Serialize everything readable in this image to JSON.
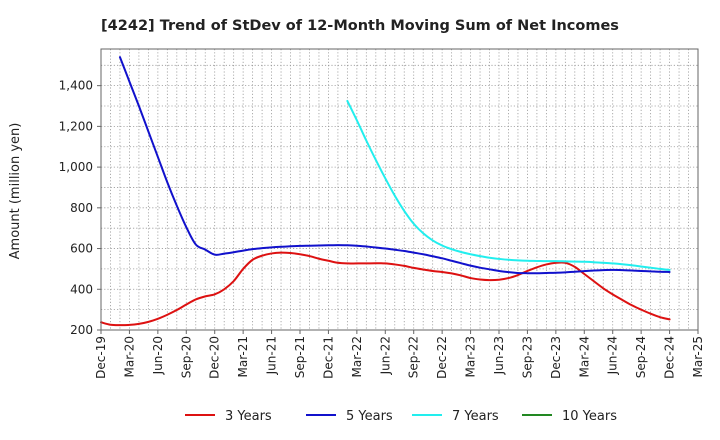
{
  "chart_data": {
    "type": "line",
    "title": "[4242]  Trend of StDev of 12-Month Moving Sum of Net Incomes",
    "xlabel": "",
    "ylabel": "Amount (million yen)",
    "ylim": [
      200,
      1580
    ],
    "yticks": [
      200,
      400,
      600,
      800,
      1000,
      1200,
      1400
    ],
    "ytick_labels": [
      "200",
      "400",
      "600",
      "800",
      "1,000",
      "1,200",
      "1,400"
    ],
    "x_range": [
      "2019-12",
      "2025-03"
    ],
    "xticks": [
      "2019-12",
      "2020-03",
      "2020-06",
      "2020-09",
      "2020-12",
      "2021-03",
      "2021-06",
      "2021-09",
      "2021-12",
      "2022-03",
      "2022-06",
      "2022-09",
      "2022-12",
      "2023-03",
      "2023-06",
      "2023-09",
      "2023-12",
      "2024-03",
      "2024-06",
      "2024-09",
      "2024-12",
      "2025-03"
    ],
    "xtick_labels": [
      "Dec-19",
      "Mar-20",
      "Jun-20",
      "Sep-20",
      "Dec-20",
      "Mar-21",
      "Jun-21",
      "Sep-21",
      "Dec-21",
      "Mar-22",
      "Jun-22",
      "Sep-22",
      "Dec-22",
      "Mar-23",
      "Jun-23",
      "Sep-23",
      "Dec-23",
      "Mar-24",
      "Jun-24",
      "Sep-24",
      "Dec-24",
      "Mar-25"
    ],
    "grid": true,
    "legend_position": "bottom",
    "series": [
      {
        "name": "3 Years",
        "color": "#dd1111",
        "points": [
          [
            "2019-12",
            238
          ],
          [
            "2020-01",
            226
          ],
          [
            "2020-02",
            224
          ],
          [
            "2020-03",
            225
          ],
          [
            "2020-04",
            230
          ],
          [
            "2020-05",
            240
          ],
          [
            "2020-06",
            255
          ],
          [
            "2020-07",
            275
          ],
          [
            "2020-08",
            298
          ],
          [
            "2020-09",
            325
          ],
          [
            "2020-10",
            350
          ],
          [
            "2020-11",
            365
          ],
          [
            "2020-12",
            375
          ],
          [
            "2021-01",
            400
          ],
          [
            "2021-02",
            440
          ],
          [
            "2021-03",
            500
          ],
          [
            "2021-04",
            545
          ],
          [
            "2021-05",
            565
          ],
          [
            "2021-06",
            576
          ],
          [
            "2021-07",
            580
          ],
          [
            "2021-08",
            578
          ],
          [
            "2021-09",
            572
          ],
          [
            "2021-10",
            563
          ],
          [
            "2021-11",
            550
          ],
          [
            "2021-12",
            540
          ],
          [
            "2022-01",
            530
          ],
          [
            "2022-02",
            527
          ],
          [
            "2022-03",
            527
          ],
          [
            "2022-04",
            527
          ],
          [
            "2022-05",
            528
          ],
          [
            "2022-06",
            527
          ],
          [
            "2022-07",
            522
          ],
          [
            "2022-08",
            515
          ],
          [
            "2022-09",
            505
          ],
          [
            "2022-10",
            497
          ],
          [
            "2022-11",
            490
          ],
          [
            "2022-12",
            485
          ],
          [
            "2023-01",
            478
          ],
          [
            "2023-02",
            468
          ],
          [
            "2023-03",
            455
          ],
          [
            "2023-04",
            448
          ],
          [
            "2023-05",
            445
          ],
          [
            "2023-06",
            447
          ],
          [
            "2023-07",
            455
          ],
          [
            "2023-08",
            470
          ],
          [
            "2023-09",
            490
          ],
          [
            "2023-10",
            508
          ],
          [
            "2023-11",
            522
          ],
          [
            "2023-12",
            530
          ],
          [
            "2024-01",
            530
          ],
          [
            "2024-02",
            510
          ],
          [
            "2024-03",
            475
          ],
          [
            "2024-04",
            440
          ],
          [
            "2024-05",
            405
          ],
          [
            "2024-06",
            375
          ],
          [
            "2024-07",
            348
          ],
          [
            "2024-08",
            322
          ],
          [
            "2024-09",
            300
          ],
          [
            "2024-10",
            280
          ],
          [
            "2024-11",
            263
          ],
          [
            "2024-12",
            252
          ]
        ]
      },
      {
        "name": "5 Years",
        "color": "#1111cc",
        "points": [
          [
            "2020-02",
            1540
          ],
          [
            "2020-03",
            1420
          ],
          [
            "2020-04",
            1300
          ],
          [
            "2020-05",
            1175
          ],
          [
            "2020-06",
            1050
          ],
          [
            "2020-07",
            925
          ],
          [
            "2020-08",
            810
          ],
          [
            "2020-09",
            705
          ],
          [
            "2020-10",
            620
          ],
          [
            "2020-11",
            595
          ],
          [
            "2020-12",
            570
          ],
          [
            "2021-01",
            575
          ],
          [
            "2021-02",
            582
          ],
          [
            "2021-03",
            590
          ],
          [
            "2021-04",
            597
          ],
          [
            "2021-05",
            602
          ],
          [
            "2021-06",
            606
          ],
          [
            "2021-07",
            609
          ],
          [
            "2021-08",
            611
          ],
          [
            "2021-09",
            613
          ],
          [
            "2021-10",
            614
          ],
          [
            "2021-11",
            615
          ],
          [
            "2021-12",
            616
          ],
          [
            "2022-01",
            617
          ],
          [
            "2022-02",
            616
          ],
          [
            "2022-03",
            614
          ],
          [
            "2022-04",
            610
          ],
          [
            "2022-05",
            605
          ],
          [
            "2022-06",
            600
          ],
          [
            "2022-07",
            594
          ],
          [
            "2022-08",
            588
          ],
          [
            "2022-09",
            580
          ],
          [
            "2022-10",
            572
          ],
          [
            "2022-11",
            562
          ],
          [
            "2022-12",
            552
          ],
          [
            "2023-01",
            540
          ],
          [
            "2023-02",
            528
          ],
          [
            "2023-03",
            516
          ],
          [
            "2023-04",
            506
          ],
          [
            "2023-05",
            498
          ],
          [
            "2023-06",
            490
          ],
          [
            "2023-07",
            484
          ],
          [
            "2023-08",
            480
          ],
          [
            "2023-09",
            479
          ],
          [
            "2023-10",
            479
          ],
          [
            "2023-11",
            480
          ],
          [
            "2023-12",
            481
          ],
          [
            "2024-01",
            483
          ],
          [
            "2024-02",
            486
          ],
          [
            "2024-03",
            489
          ],
          [
            "2024-04",
            492
          ],
          [
            "2024-05",
            494
          ],
          [
            "2024-06",
            495
          ],
          [
            "2024-07",
            494
          ],
          [
            "2024-08",
            492
          ],
          [
            "2024-09",
            490
          ],
          [
            "2024-10",
            488
          ],
          [
            "2024-11",
            486
          ],
          [
            "2024-12",
            485
          ]
        ]
      },
      {
        "name": "7 Years",
        "color": "#22eeee",
        "points": [
          [
            "2022-02",
            1325
          ],
          [
            "2022-03",
            1230
          ],
          [
            "2022-04",
            1130
          ],
          [
            "2022-05",
            1035
          ],
          [
            "2022-06",
            945
          ],
          [
            "2022-07",
            860
          ],
          [
            "2022-08",
            785
          ],
          [
            "2022-09",
            722
          ],
          [
            "2022-10",
            675
          ],
          [
            "2022-11",
            640
          ],
          [
            "2022-12",
            615
          ],
          [
            "2023-01",
            597
          ],
          [
            "2023-02",
            583
          ],
          [
            "2023-03",
            572
          ],
          [
            "2023-04",
            563
          ],
          [
            "2023-05",
            555
          ],
          [
            "2023-06",
            549
          ],
          [
            "2023-07",
            545
          ],
          [
            "2023-08",
            542
          ],
          [
            "2023-09",
            540
          ],
          [
            "2023-10",
            539
          ],
          [
            "2023-11",
            538
          ],
          [
            "2023-12",
            538
          ],
          [
            "2024-01",
            537
          ],
          [
            "2024-02",
            536
          ],
          [
            "2024-03",
            535
          ],
          [
            "2024-04",
            533
          ],
          [
            "2024-05",
            530
          ],
          [
            "2024-06",
            527
          ],
          [
            "2024-07",
            523
          ],
          [
            "2024-08",
            518
          ],
          [
            "2024-09",
            512
          ],
          [
            "2024-10",
            506
          ],
          [
            "2024-11",
            500
          ],
          [
            "2024-12",
            495
          ]
        ]
      },
      {
        "name": "10 Years",
        "color": "#228822",
        "points": []
      }
    ]
  }
}
